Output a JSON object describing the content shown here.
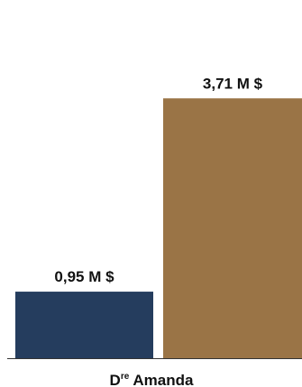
{
  "chart_data": {
    "type": "bar",
    "categories": [
      "Dre Amanda"
    ],
    "category_display": {
      "base": "D",
      "sup": "re",
      "rest": " Amanda"
    },
    "series": [
      {
        "values": [
          0.95
        ],
        "value_label": "0,95 M $"
      },
      {
        "values": [
          3.71
        ],
        "value_label": "3,71 M $"
      }
    ],
    "ylim": [
      0,
      4.6
    ],
    "grid": false,
    "colors": [
      "#253d5e",
      "#9a7446"
    ],
    "axis_color": "#333333"
  }
}
